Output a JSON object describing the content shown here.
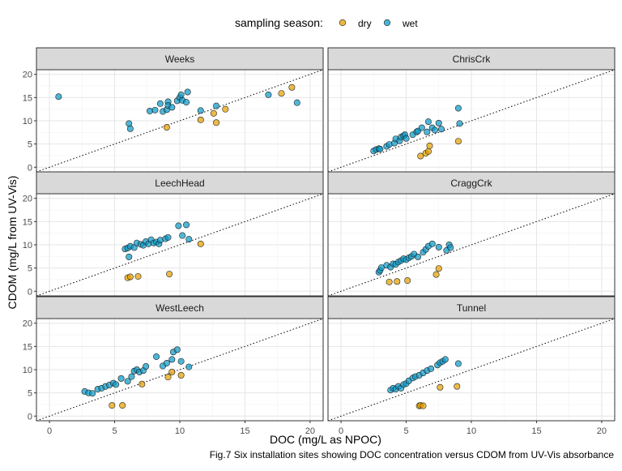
{
  "caption": "Fig.7 Six installation sites showing DOC concentration versus CDOM from UV-Vis absorbance",
  "chart_data": {
    "type": "scatter",
    "facet_layout": "3 rows x 2 columns",
    "xlabel": "DOC (mg/L as NPOC)",
    "ylabel": "CDOM (mg/L from UV-Vis)",
    "xlim": [
      -1,
      21
    ],
    "ylim": [
      -1,
      21
    ],
    "x_ticks": [
      0,
      5,
      10,
      15,
      20
    ],
    "y_ticks": [
      0,
      5,
      10,
      15,
      20
    ],
    "grid": true,
    "reference_line": "1:1 dotted",
    "legend": {
      "title": "sampling season:",
      "position": "top",
      "entries": [
        {
          "label": "dry",
          "color": "#E69F00"
        },
        {
          "label": "wet",
          "color": "#0C9AC8"
        }
      ]
    },
    "panels": [
      {
        "title": "Weeks",
        "series": [
          {
            "name": "dry",
            "points": [
              [
                9.0,
                8.6
              ],
              [
                11.6,
                10.2
              ],
              [
                12.6,
                11.6
              ],
              [
                12.8,
                9.6
              ],
              [
                13.5,
                12.5
              ],
              [
                17.8,
                15.9
              ],
              [
                18.6,
                17.2
              ]
            ]
          },
          {
            "name": "wet",
            "points": [
              [
                0.7,
                15.2
              ],
              [
                6.1,
                9.4
              ],
              [
                6.2,
                8.3
              ],
              [
                7.7,
                12.1
              ],
              [
                8.1,
                12.3
              ],
              [
                8.5,
                13.7
              ],
              [
                8.7,
                12.0
              ],
              [
                9.0,
                12.4
              ],
              [
                9.1,
                14.1
              ],
              [
                9.1,
                13.3
              ],
              [
                9.4,
                12.9
              ],
              [
                9.8,
                14.3
              ],
              [
                10.0,
                15.0
              ],
              [
                10.1,
                15.6
              ],
              [
                10.2,
                14.4
              ],
              [
                10.6,
                16.2
              ],
              [
                10.5,
                14.0
              ],
              [
                11.6,
                12.2
              ],
              [
                12.8,
                13.2
              ],
              [
                16.8,
                15.6
              ],
              [
                19.0,
                13.9
              ]
            ]
          }
        ]
      },
      {
        "title": "ChrisCrk",
        "series": [
          {
            "name": "dry",
            "points": [
              [
                6.1,
                2.4
              ],
              [
                6.5,
                3.0
              ],
              [
                6.7,
                3.4
              ],
              [
                6.8,
                4.6
              ],
              [
                9.0,
                5.6
              ]
            ]
          },
          {
            "name": "wet",
            "points": [
              [
                2.5,
                3.5
              ],
              [
                2.7,
                3.8
              ],
              [
                2.9,
                4.0
              ],
              [
                3.0,
                3.9
              ],
              [
                3.5,
                4.5
              ],
              [
                3.7,
                4.9
              ],
              [
                4.1,
                5.2
              ],
              [
                4.2,
                6.1
              ],
              [
                4.5,
                5.7
              ],
              [
                4.6,
                6.5
              ],
              [
                4.8,
                6.8
              ],
              [
                4.9,
                7.0
              ],
              [
                5.0,
                6.2
              ],
              [
                5.5,
                7.0
              ],
              [
                5.8,
                7.6
              ],
              [
                5.9,
                7.8
              ],
              [
                6.2,
                8.5
              ],
              [
                6.6,
                7.6
              ],
              [
                6.7,
                9.8
              ],
              [
                7.0,
                8.5
              ],
              [
                7.2,
                8.0
              ],
              [
                7.5,
                9.5
              ],
              [
                7.7,
                8.2
              ],
              [
                9.0,
                12.7
              ],
              [
                9.1,
                9.4
              ]
            ]
          }
        ]
      },
      {
        "title": "LeechHead",
        "series": [
          {
            "name": "dry",
            "points": [
              [
                6.0,
                2.9
              ],
              [
                6.2,
                3.1
              ],
              [
                6.8,
                3.2
              ],
              [
                9.2,
                3.7
              ],
              [
                11.6,
                10.2
              ]
            ]
          },
          {
            "name": "wet",
            "points": [
              [
                5.8,
                9.1
              ],
              [
                6.0,
                9.3
              ],
              [
                6.1,
                7.4
              ],
              [
                6.2,
                9.7
              ],
              [
                6.5,
                9.4
              ],
              [
                6.7,
                10.4
              ],
              [
                7.0,
                10.1
              ],
              [
                7.2,
                9.9
              ],
              [
                7.4,
                10.7
              ],
              [
                7.6,
                10.2
              ],
              [
                7.8,
                11.1
              ],
              [
                8.0,
                10.4
              ],
              [
                8.2,
                10.6
              ],
              [
                8.4,
                10.2
              ],
              [
                8.5,
                11.0
              ],
              [
                8.9,
                11.3
              ],
              [
                9.1,
                11.6
              ],
              [
                9.9,
                14.1
              ],
              [
                10.2,
                12.0
              ],
              [
                10.5,
                14.3
              ],
              [
                10.7,
                11.2
              ]
            ]
          }
        ]
      },
      {
        "title": "CraggCrk",
        "series": [
          {
            "name": "dry",
            "points": [
              [
                3.7,
                2.0
              ],
              [
                4.3,
                2.1
              ],
              [
                5.1,
                2.3
              ],
              [
                7.3,
                3.6
              ],
              [
                7.5,
                4.9
              ]
            ]
          },
          {
            "name": "wet",
            "points": [
              [
                2.9,
                4.1
              ],
              [
                3.0,
                4.5
              ],
              [
                3.1,
                5.1
              ],
              [
                3.5,
                5.6
              ],
              [
                3.8,
                5.2
              ],
              [
                4.0,
                5.9
              ],
              [
                4.2,
                5.8
              ],
              [
                4.4,
                6.3
              ],
              [
                4.6,
                6.6
              ],
              [
                4.8,
                7.0
              ],
              [
                5.0,
                6.8
              ],
              [
                5.2,
                7.2
              ],
              [
                5.4,
                7.5
              ],
              [
                5.6,
                8.0
              ],
              [
                5.9,
                7.4
              ],
              [
                6.3,
                8.4
              ],
              [
                6.5,
                9.0
              ],
              [
                6.7,
                9.7
              ],
              [
                7.0,
                10.2
              ],
              [
                7.5,
                9.5
              ],
              [
                8.1,
                8.8
              ],
              [
                8.3,
                10.0
              ],
              [
                8.4,
                9.4
              ]
            ]
          }
        ]
      },
      {
        "title": "WestLeech",
        "series": [
          {
            "name": "dry",
            "points": [
              [
                4.8,
                2.3
              ],
              [
                5.6,
                2.3
              ],
              [
                7.1,
                6.9
              ],
              [
                9.1,
                8.4
              ],
              [
                9.4,
                9.5
              ],
              [
                10.1,
                8.8
              ]
            ]
          },
          {
            "name": "wet",
            "points": [
              [
                2.7,
                5.3
              ],
              [
                3.0,
                5.0
              ],
              [
                3.3,
                4.9
              ],
              [
                3.7,
                5.8
              ],
              [
                4.0,
                6.0
              ],
              [
                4.3,
                6.4
              ],
              [
                4.6,
                6.7
              ],
              [
                4.9,
                7.1
              ],
              [
                5.1,
                6.8
              ],
              [
                5.5,
                8.1
              ],
              [
                6.0,
                7.5
              ],
              [
                6.3,
                8.5
              ],
              [
                6.5,
                9.7
              ],
              [
                6.7,
                10.0
              ],
              [
                6.9,
                9.5
              ],
              [
                7.2,
                9.8
              ],
              [
                7.4,
                10.7
              ],
              [
                8.2,
                12.8
              ],
              [
                8.7,
                10.8
              ],
              [
                9.0,
                11.4
              ],
              [
                9.4,
                12.2
              ],
              [
                9.5,
                13.8
              ],
              [
                9.8,
                14.3
              ],
              [
                10.1,
                11.8
              ],
              [
                10.7,
                10.6
              ]
            ]
          }
        ]
      },
      {
        "title": "Tunnel",
        "series": [
          {
            "name": "dry",
            "points": [
              [
                6.0,
                2.2
              ],
              [
                6.1,
                2.3
              ],
              [
                6.3,
                2.2
              ],
              [
                7.6,
                6.2
              ],
              [
                8.9,
                6.4
              ]
            ]
          },
          {
            "name": "wet",
            "points": [
              [
                3.8,
                5.6
              ],
              [
                4.0,
                6.0
              ],
              [
                4.2,
                5.8
              ],
              [
                4.4,
                6.4
              ],
              [
                4.6,
                6.0
              ],
              [
                4.8,
                6.8
              ],
              [
                5.0,
                7.0
              ],
              [
                5.2,
                7.6
              ],
              [
                5.5,
                8.2
              ],
              [
                5.7,
                8.5
              ],
              [
                6.0,
                8.8
              ],
              [
                6.3,
                9.3
              ],
              [
                6.6,
                9.8
              ],
              [
                6.9,
                10.2
              ],
              [
                7.4,
                11.0
              ],
              [
                7.6,
                11.5
              ],
              [
                7.8,
                11.8
              ],
              [
                8.0,
                12.2
              ],
              [
                9.0,
                11.3
              ]
            ]
          }
        ]
      }
    ]
  }
}
